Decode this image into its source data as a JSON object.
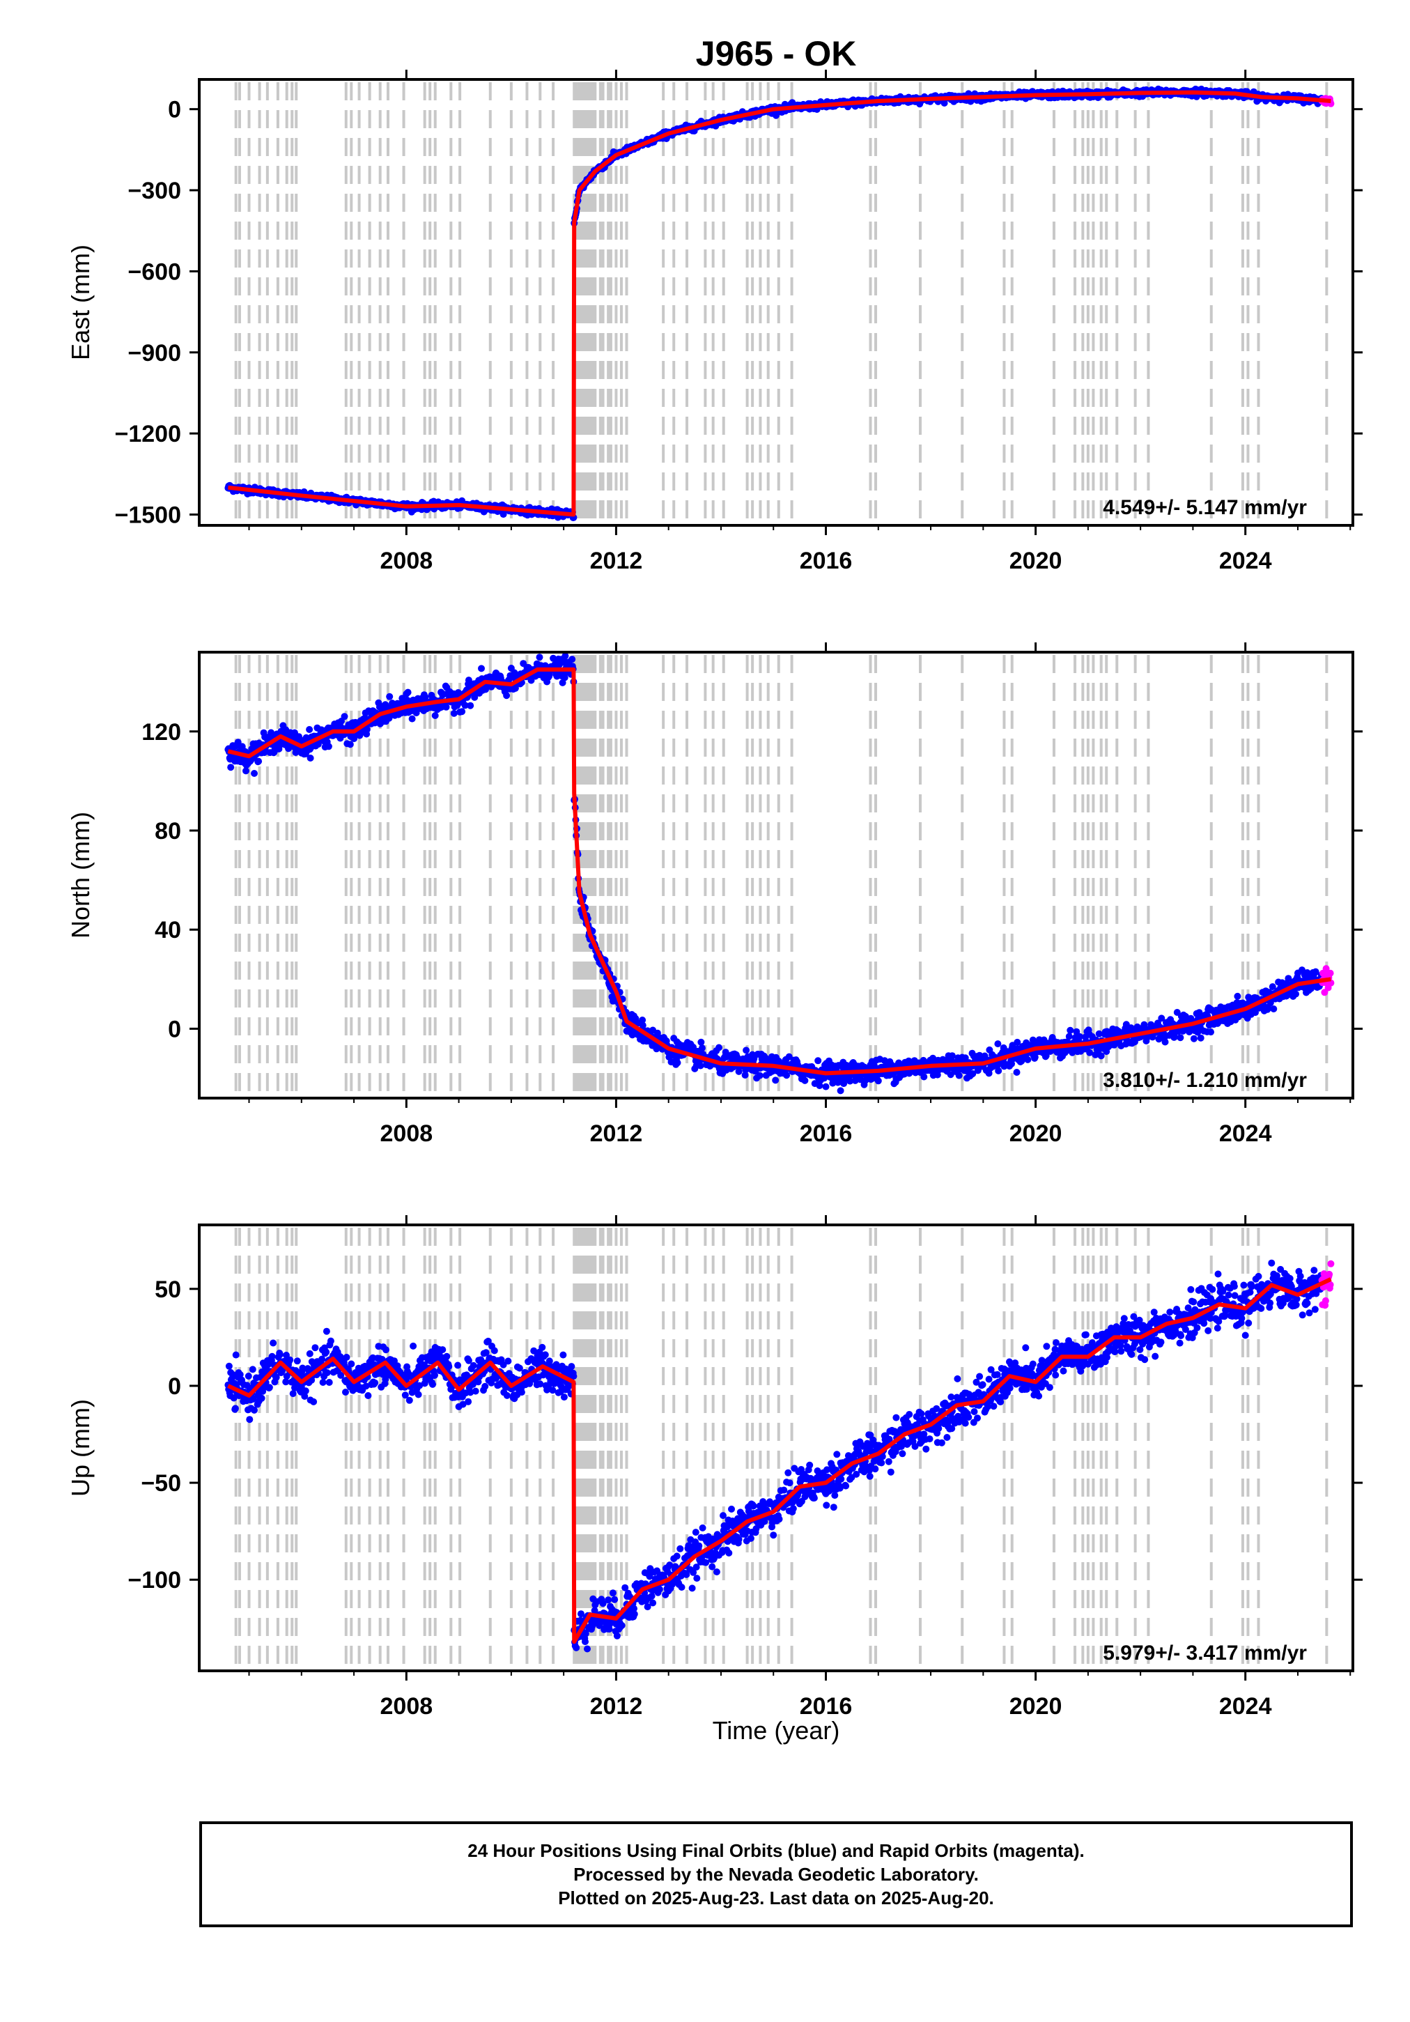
{
  "title": "J965 - OK",
  "xlabel": "Time (year)",
  "caption": {
    "line1": "24 Hour Positions Using Final Orbits (blue) and Rapid Orbits (magenta).",
    "line2": "Processed by the Nevada Geodetic Laboratory.",
    "line3": "Plotted on 2025-Aug-23. Last data on 2025-Aug-20."
  },
  "colors": {
    "final_orbits": "#0000ff",
    "rapid_orbits": "#ff00ff",
    "model": "#ff0000",
    "event_lines": "#c8c8c8",
    "axes": "#000000"
  },
  "chart_data": [
    {
      "type": "scatter",
      "ylabel": "East (mm)",
      "rate_label": "4.549+/- 5.147 mm/yr",
      "xlim": [
        2004.05,
        2026.05
      ],
      "ylim": [
        -1540,
        110
      ],
      "xticks": [
        2008,
        2012,
        2016,
        2020,
        2024
      ],
      "yticks": [
        0,
        -300,
        -600,
        -900,
        -1200,
        -1500
      ],
      "model": [
        [
          2004.6,
          -1400
        ],
        [
          2006,
          -1430
        ],
        [
          2008,
          -1470
        ],
        [
          2009,
          -1465
        ],
        [
          2011.19,
          -1500
        ],
        [
          2011.2,
          -420
        ],
        [
          2011.3,
          -300
        ],
        [
          2011.6,
          -230
        ],
        [
          2012,
          -170
        ],
        [
          2013,
          -90
        ],
        [
          2014,
          -40
        ],
        [
          2015,
          0
        ],
        [
          2016,
          15
        ],
        [
          2017,
          30
        ],
        [
          2018,
          38
        ],
        [
          2019,
          45
        ],
        [
          2020,
          52
        ],
        [
          2021,
          55
        ],
        [
          2022,
          60
        ],
        [
          2023,
          62
        ],
        [
          2023.8,
          58
        ],
        [
          2024.3,
          45
        ],
        [
          2025,
          40
        ],
        [
          2025.63,
          30
        ]
      ],
      "scatter_sd": 6,
      "rapid_range": [
        2025.45,
        2025.63
      ]
    },
    {
      "type": "scatter",
      "ylabel": "North (mm)",
      "rate_label": "3.810+/- 1.210 mm/yr",
      "xlim": [
        2004.05,
        2026.05
      ],
      "ylim": [
        -28,
        152
      ],
      "xticks": [
        2008,
        2012,
        2016,
        2020,
        2024
      ],
      "yticks": [
        0,
        40,
        80,
        120
      ],
      "model": [
        [
          2004.6,
          112
        ],
        [
          2005,
          110
        ],
        [
          2005.6,
          118
        ],
        [
          2006,
          114
        ],
        [
          2006.6,
          120
        ],
        [
          2007,
          120
        ],
        [
          2007.5,
          127
        ],
        [
          2008,
          130
        ],
        [
          2008.6,
          132
        ],
        [
          2009,
          133
        ],
        [
          2009.5,
          140
        ],
        [
          2010,
          139
        ],
        [
          2010.5,
          145
        ],
        [
          2011.19,
          145
        ],
        [
          2011.2,
          95
        ],
        [
          2011.3,
          55
        ],
        [
          2011.5,
          38
        ],
        [
          2012,
          15
        ],
        [
          2012.2,
          3
        ],
        [
          2013,
          -8
        ],
        [
          2014,
          -14
        ],
        [
          2015,
          -15
        ],
        [
          2016,
          -18
        ],
        [
          2017,
          -17
        ],
        [
          2018,
          -15
        ],
        [
          2019,
          -14
        ],
        [
          2020,
          -8
        ],
        [
          2021,
          -6
        ],
        [
          2022,
          -2
        ],
        [
          2023,
          2
        ],
        [
          2024,
          8
        ],
        [
          2025,
          18
        ],
        [
          2025.63,
          20
        ]
      ],
      "scatter_sd": 2.2,
      "rapid_range": [
        2025.45,
        2025.63
      ]
    },
    {
      "type": "scatter",
      "ylabel": "Up (mm)",
      "rate_label": "5.979+/- 3.417 mm/yr",
      "xlim": [
        2004.05,
        2026.05
      ],
      "ylim": [
        -147,
        83
      ],
      "xticks": [
        2008,
        2012,
        2016,
        2020,
        2024
      ],
      "yticks": [
        50,
        0,
        -50,
        -100
      ],
      "model": [
        [
          2004.6,
          0
        ],
        [
          2005,
          -5
        ],
        [
          2005.6,
          12
        ],
        [
          2006,
          2
        ],
        [
          2006.6,
          14
        ],
        [
          2007,
          2
        ],
        [
          2007.6,
          12
        ],
        [
          2008,
          0
        ],
        [
          2008.6,
          12
        ],
        [
          2009,
          -2
        ],
        [
          2009.6,
          12
        ],
        [
          2010,
          0
        ],
        [
          2010.6,
          10
        ],
        [
          2011.19,
          2
        ],
        [
          2011.2,
          -132
        ],
        [
          2011.5,
          -118
        ],
        [
          2012,
          -120
        ],
        [
          2012.5,
          -105
        ],
        [
          2013,
          -100
        ],
        [
          2013.5,
          -88
        ],
        [
          2014,
          -80
        ],
        [
          2014.5,
          -70
        ],
        [
          2015,
          -65
        ],
        [
          2015.5,
          -52
        ],
        [
          2016,
          -50
        ],
        [
          2016.5,
          -40
        ],
        [
          2017,
          -35
        ],
        [
          2017.5,
          -25
        ],
        [
          2018,
          -20
        ],
        [
          2018.5,
          -10
        ],
        [
          2019,
          -8
        ],
        [
          2019.5,
          5
        ],
        [
          2020,
          2
        ],
        [
          2020.5,
          15
        ],
        [
          2021,
          15
        ],
        [
          2021.5,
          25
        ],
        [
          2022,
          25
        ],
        [
          2022.5,
          32
        ],
        [
          2023,
          35
        ],
        [
          2023.5,
          42
        ],
        [
          2024,
          40
        ],
        [
          2024.5,
          52
        ],
        [
          2025,
          47
        ],
        [
          2025.63,
          55
        ]
      ],
      "scatter_sd": 5,
      "rapid_range": [
        2025.45,
        2025.63
      ]
    }
  ],
  "event_lines": [
    2004.75,
    2004.82,
    2005.0,
    2005.2,
    2005.35,
    2005.55,
    2005.72,
    2005.82,
    2005.9,
    2006.85,
    2006.95,
    2007.1,
    2007.3,
    2007.5,
    2007.65,
    2007.95,
    2008.35,
    2008.45,
    2008.55,
    2008.85,
    2009.02,
    2009.6,
    2010.0,
    2010.3,
    2010.55,
    2010.8,
    2011.2,
    2011.25,
    2011.3,
    2011.35,
    2011.4,
    2011.45,
    2011.5,
    2011.55,
    2011.6,
    2011.7,
    2011.75,
    2011.85,
    2011.9,
    2012.0,
    2012.1,
    2012.2,
    2012.9,
    2013.1,
    2013.35,
    2013.7,
    2013.85,
    2014.05,
    2014.5,
    2014.6,
    2014.75,
    2014.9,
    2015.1,
    2015.35,
    2016.85,
    2016.95,
    2017.8,
    2018.6,
    2019.4,
    2019.55,
    2020.35,
    2020.75,
    2020.9,
    2021.0,
    2021.1,
    2021.25,
    2021.35,
    2021.55,
    2021.9,
    2022.15,
    2023.35,
    2023.95,
    2024.05,
    2024.25,
    2025.55
  ]
}
